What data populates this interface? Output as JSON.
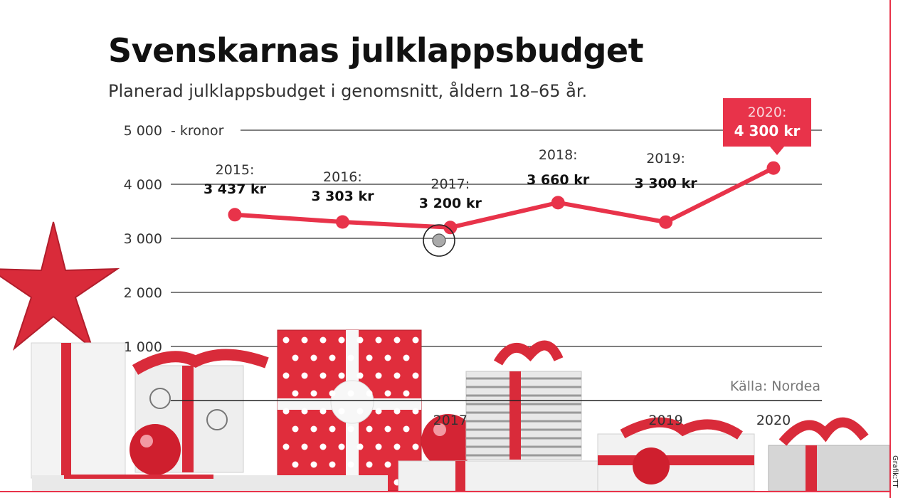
{
  "title": "Svenskarnas julklappsbudget",
  "subtitle": "Planerad julklappsbudget i genomsnitt, åldern 18–65 år.",
  "source": "Källa: Nordea",
  "credit": "Grafik:TT",
  "colors": {
    "line": "#e8334a",
    "callout": "#e8334a",
    "grid": "#333333",
    "frame": "#e8334a"
  },
  "chart_data": {
    "type": "line",
    "x": [
      2015,
      2016,
      2017,
      2018,
      2019,
      2020
    ],
    "y": [
      3437,
      3303,
      3200,
      3660,
      3300,
      4300
    ],
    "unit_label": "- kronor",
    "ylim": [
      0,
      5000
    ],
    "yticks": [
      "1 000",
      "2 000",
      "3 000",
      "4 000",
      "5 000"
    ],
    "ytick_values": [
      1000,
      2000,
      3000,
      4000,
      5000
    ],
    "xtick_labels_visible": [
      "2017",
      "2019",
      "2020"
    ],
    "point_labels": [
      {
        "year": "2015:",
        "value": "3 437 kr"
      },
      {
        "year": "2016:",
        "value": "3 303 kr"
      },
      {
        "year": "2017:",
        "value": "3 200 kr"
      },
      {
        "year": "2018:",
        "value": "3 660 kr"
      },
      {
        "year": "2019:",
        "value": "3 300 kr"
      },
      {
        "year": "2020:",
        "value": "4 300 kr"
      }
    ],
    "highlight": "2020",
    "grid": true
  },
  "decoration": {
    "icon": "christmas-gifts-illustration"
  }
}
